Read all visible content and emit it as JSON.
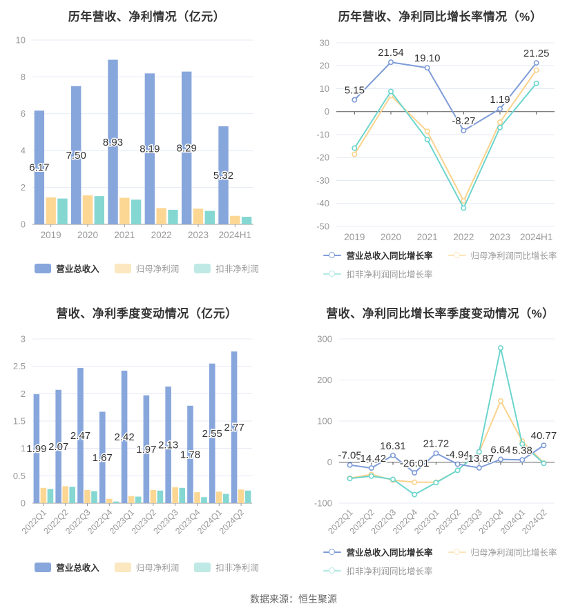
{
  "page": {
    "footer": "数据来源：恒生聚源",
    "background": "#ffffff"
  },
  "colors": {
    "title_text": "#333333",
    "axis_label_text": "#999999",
    "value_label_text": "#333333",
    "gridline": "#e4eaf5",
    "bar_axis_line": "#999999",
    "zero_axis_line": "#555555",
    "footer_text": "#666666",
    "revenue_blue": "#87a6dc",
    "net_profit_orange": "#fcd794",
    "non_gaap_teal": "#85d7d2",
    "line_blue": "#7e9cd8",
    "line_orange": "#fbd28c",
    "line_teal": "#6bd5cd",
    "legend_orange_tint": "#fbe7c0",
    "legend_teal_tint": "#bfe9e5"
  },
  "chart_data": [
    {
      "id": "annual-revenue-profit",
      "type": "bar",
      "title": "历年营收、净利情况（亿元）",
      "categories": [
        "2019",
        "2020",
        "2021",
        "2022",
        "2023",
        "2024H1"
      ],
      "y_axis": {
        "min": 0,
        "max": 10,
        "step": 2
      },
      "rotate_x_labels": false,
      "grid": true,
      "legend_rows": [
        [
          0,
          1,
          2
        ]
      ],
      "series": [
        {
          "name": "营业总收入",
          "color": "#87a6dc",
          "legend_color": "#87a6dc",
          "values": [
            6.17,
            7.5,
            8.93,
            8.19,
            8.29,
            5.32
          ],
          "labels": [
            "6.17",
            "7.50",
            "8.93",
            "8.19",
            "8.29",
            "5.32"
          ]
        },
        {
          "name": "归母净利润",
          "color": "#fcd794",
          "legend_color": "#fbe7c0",
          "values": [
            1.46,
            1.57,
            1.44,
            0.88,
            0.85,
            0.46
          ]
        },
        {
          "name": "扣非净利润",
          "color": "#85d7d2",
          "legend_color": "#bfe9e5",
          "values": [
            1.4,
            1.53,
            1.34,
            0.79,
            0.73,
            0.41
          ]
        }
      ]
    },
    {
      "id": "annual-growth-rate",
      "type": "line",
      "title": "历年营收、净利同比增长率情况（%）",
      "categories": [
        "2019",
        "2020",
        "2021",
        "2022",
        "2023",
        "2024H1"
      ],
      "y_axis": {
        "min": -50,
        "max": 30,
        "step": 10
      },
      "rotate_x_labels": false,
      "grid": true,
      "legend_rows": [
        [
          0,
          1
        ],
        [
          2
        ]
      ],
      "series": [
        {
          "name": "营业总收入同比增长率",
          "color": "#7e9cd8",
          "legend_color": "#7e9cd8",
          "values": [
            5.15,
            21.54,
            19.1,
            -8.27,
            1.19,
            21.25
          ],
          "labels": [
            "5.15",
            "21.54",
            "19.10",
            "-8.27",
            "1.19",
            "21.25"
          ]
        },
        {
          "name": "归母净利润同比增长率",
          "color": "#fbd28c",
          "legend_color": "#fce5b8",
          "values": [
            -18.6,
            7.0,
            -8.6,
            -38.9,
            -4.6,
            18.1
          ]
        },
        {
          "name": "扣非净利润同比增长率",
          "color": "#6bd5cd",
          "legend_color": "#b2e8e3",
          "values": [
            -15.9,
            8.8,
            -12.2,
            -42.0,
            -6.9,
            12.3
          ]
        }
      ]
    },
    {
      "id": "quarterly-revenue-profit",
      "type": "bar",
      "title": "营收、净利季度变动情况（亿元）",
      "categories": [
        "2022Q1",
        "2022Q2",
        "2022Q3",
        "2022Q4",
        "2023Q1",
        "2023Q2",
        "2023Q3",
        "2023Q4",
        "2024Q1",
        "2024Q2"
      ],
      "y_axis": {
        "min": 0,
        "max": 3,
        "step": 0.5
      },
      "rotate_x_labels": true,
      "grid": true,
      "legend_rows": [
        [
          0,
          1,
          2
        ]
      ],
      "series": [
        {
          "name": "营业总收入",
          "color": "#87a6dc",
          "legend_color": "#87a6dc",
          "values": [
            1.99,
            2.07,
            2.47,
            1.67,
            2.42,
            1.97,
            2.13,
            1.78,
            2.55,
            2.77
          ],
          "labels": [
            "1.99",
            "2.07",
            "2.47",
            "1.67",
            "2.42",
            "1.97",
            "2.13",
            "1.78",
            "2.55",
            "2.77"
          ]
        },
        {
          "name": "归母净利润",
          "color": "#fcd794",
          "legend_color": "#fbe7c0",
          "values": [
            0.28,
            0.31,
            0.24,
            0.08,
            0.13,
            0.24,
            0.29,
            0.2,
            0.21,
            0.25
          ]
        },
        {
          "name": "扣非净利润",
          "color": "#85d7d2",
          "legend_color": "#bfe9e5",
          "values": [
            0.26,
            0.3,
            0.22,
            0.03,
            0.12,
            0.23,
            0.28,
            0.11,
            0.17,
            0.23
          ]
        }
      ]
    },
    {
      "id": "quarterly-growth-rate",
      "type": "line",
      "title": "营收、净利同比增长率季度变动情况（%）",
      "categories": [
        "2022Q1",
        "2022Q2",
        "2022Q3",
        "2022Q4",
        "2023Q1",
        "2023Q2",
        "2023Q3",
        "2023Q4",
        "2024Q1",
        "2024Q2"
      ],
      "y_axis": {
        "min": -100,
        "max": 300,
        "step": 100
      },
      "rotate_x_labels": true,
      "grid": true,
      "legend_rows": [
        [
          0,
          1
        ],
        [
          2
        ]
      ],
      "series": [
        {
          "name": "营业总收入同比增长率",
          "color": "#7e9cd8",
          "legend_color": "#7e9cd8",
          "values": [
            -7.05,
            -14.42,
            16.31,
            -26.01,
            21.72,
            -4.94,
            -13.87,
            6.64,
            5.38,
            40.77
          ],
          "labels": [
            "-7.05",
            "-14.42",
            "16.31",
            "-26.01",
            "21.72",
            "-4.94",
            "-13.87",
            "6.64",
            "5.38",
            "40.77"
          ]
        },
        {
          "name": "归母净利润同比增长率",
          "color": "#fbd28c",
          "legend_color": "#fce5b8",
          "values": [
            -39,
            -30,
            -44,
            -49,
            -49,
            -20,
            24,
            149,
            51,
            -2
          ]
        },
        {
          "name": "扣非净利润同比增长率",
          "color": "#6bd5cd",
          "legend_color": "#b2e8e3",
          "values": [
            -40,
            -34,
            -42,
            -79,
            -50,
            -20,
            25,
            278,
            44,
            -3
          ]
        }
      ]
    }
  ]
}
